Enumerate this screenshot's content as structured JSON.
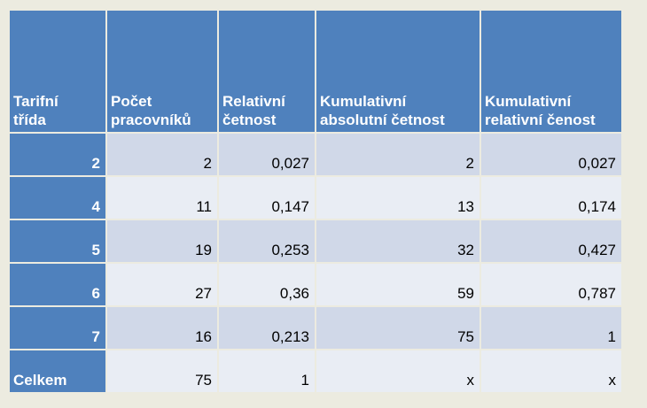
{
  "table": {
    "headers": [
      "Tarifní třída",
      "Počet pracovníků",
      "Relativní četnost",
      "Kumulativní absolutní četnost",
      "Kumulativní relativní čenost"
    ],
    "header_lines": [
      [
        "Tarifní",
        "třída"
      ],
      [
        "Počet",
        "pracovníků"
      ],
      [
        "Relativní",
        "četnost"
      ],
      [
        "Kumulativní",
        "absolutní četnost"
      ],
      [
        "Kumulativní",
        "relativní čenost"
      ]
    ],
    "rows": [
      [
        "2",
        "2",
        "0,027",
        "2",
        "0,027"
      ],
      [
        "4",
        "11",
        "0,147",
        "13",
        "0,174"
      ],
      [
        "5",
        "19",
        "0,253",
        "32",
        "0,427"
      ],
      [
        "6",
        "27",
        "0,36",
        "59",
        "0,787"
      ],
      [
        "7",
        "16",
        "0,213",
        "75",
        "1"
      ],
      [
        "Celkem",
        "75",
        "1",
        "x",
        "x"
      ]
    ]
  },
  "colors": {
    "header_background": "#4f81bd",
    "header_text": "#ffffff",
    "row_odd": "#d0d8e8",
    "row_even": "#e9edf4",
    "page_background": "#ecebe0"
  }
}
